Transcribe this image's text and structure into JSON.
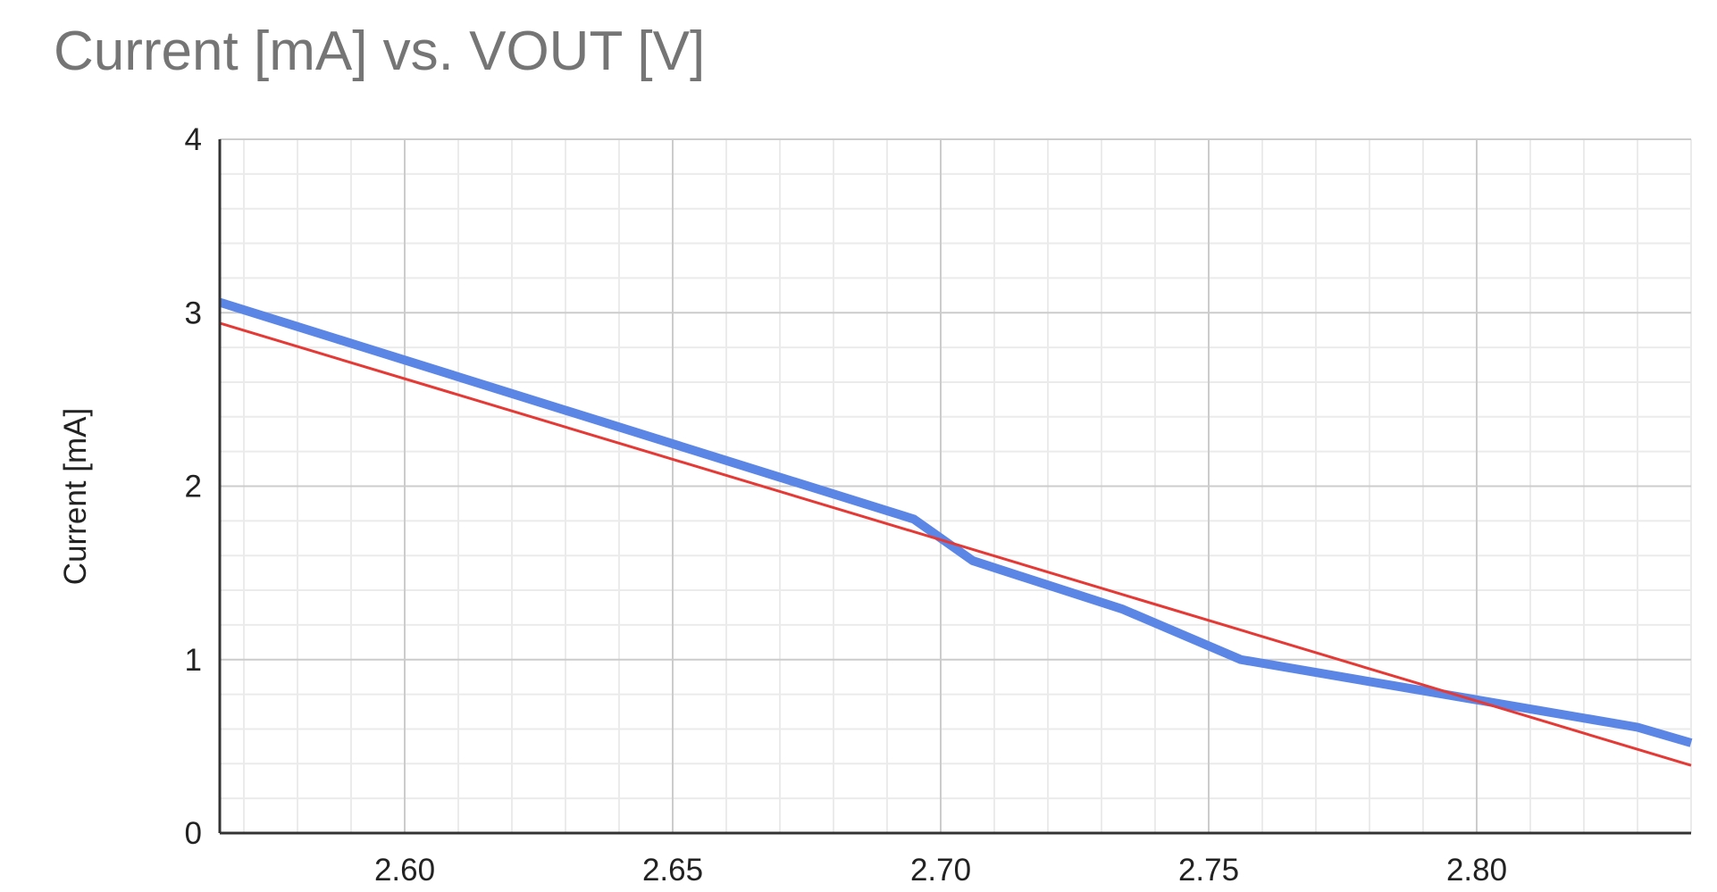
{
  "chart_data": {
    "type": "line",
    "title": "Current [mA] vs. VOUT [V]",
    "xlabel": "",
    "ylabel": "Current [mA]",
    "xlim": [
      2.5655,
      2.84
    ],
    "ylim": [
      0,
      4
    ],
    "x_ticks": [
      "2.60",
      "2.65",
      "2.70",
      "2.75",
      "2.80"
    ],
    "y_ticks": [
      "0",
      "1",
      "2",
      "3",
      "4"
    ],
    "grid": true,
    "legend": "none",
    "series": [
      {
        "color": "#5b86e6",
        "x": [
          2.5655,
          2.695,
          2.706,
          2.734,
          2.756,
          2.83,
          2.84
        ],
        "y": [
          3.06,
          1.81,
          1.57,
          1.29,
          1.0,
          0.61,
          0.52
        ]
      }
    ],
    "trendline": {
      "color": "#e53935",
      "x": [
        2.5655,
        2.84
      ],
      "y": [
        2.94,
        0.39
      ]
    }
  }
}
